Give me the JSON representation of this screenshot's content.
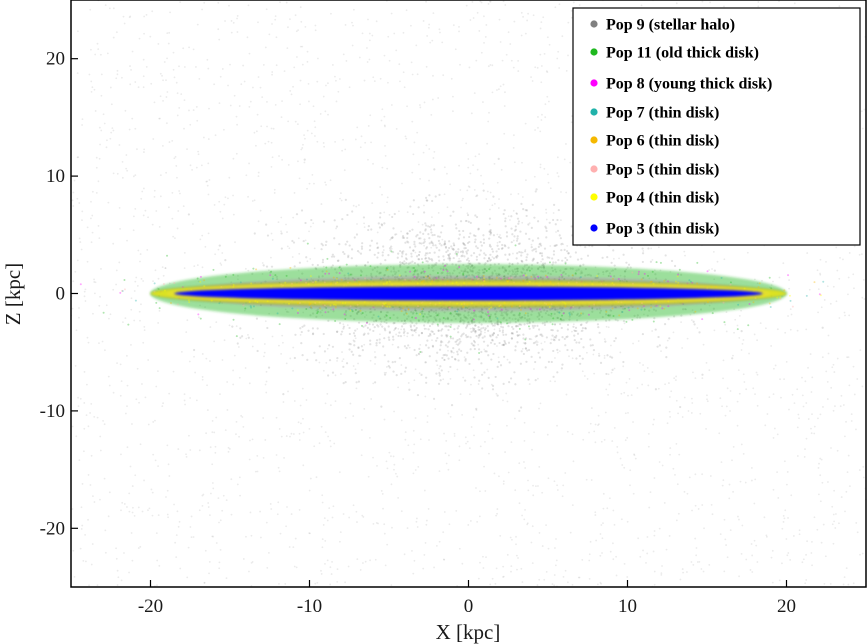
{
  "chart_data": {
    "type": "scatter",
    "xlabel": "X [kpc]",
    "ylabel": "Z [kpc]",
    "xlim": [
      -25,
      25
    ],
    "ylim": [
      -25,
      25
    ],
    "x_ticks": [
      -20,
      -10,
      0,
      10,
      20
    ],
    "y_ticks": [
      -20,
      -10,
      0,
      10,
      20
    ],
    "grid": false,
    "legend_position": "top-right",
    "series": [
      {
        "name": "Pop 9 (stellar halo)",
        "color": "#808080",
        "component": "halo",
        "x_extent": [
          -25,
          25
        ],
        "z_extent": [
          -25,
          25
        ]
      },
      {
        "name": "Pop 11 (old thick disk)",
        "color": "#1fb81f",
        "component": "thick-disk",
        "x_extent": [
          -20,
          20
        ],
        "z_extent": [
          -2.5,
          2.5
        ]
      },
      {
        "name": "Pop 8 (young thick disk)",
        "color": "#ff00ff",
        "component": "thick-disk",
        "x_extent": [
          -18,
          18
        ],
        "z_extent": [
          -1.5,
          1.5
        ]
      },
      {
        "name": "Pop 7 (thin disk)",
        "color": "#20b2aa",
        "component": "thin-disk",
        "x_extent": [
          -20,
          20
        ],
        "z_extent": [
          -1.2,
          1.2
        ]
      },
      {
        "name": "Pop 6 (thin disk)",
        "color": "#f5b800",
        "component": "thin-disk",
        "x_extent": [
          -20,
          20
        ],
        "z_extent": [
          -1.2,
          1.2
        ]
      },
      {
        "name": "Pop 5 (thin disk)",
        "color": "#ffb0b0",
        "component": "thin-disk",
        "x_extent": [
          -19,
          19
        ],
        "z_extent": [
          -0.9,
          0.9
        ]
      },
      {
        "name": "Pop 4 (thin disk)",
        "color": "#ffff00",
        "component": "thin-disk",
        "x_extent": [
          -20,
          20
        ],
        "z_extent": [
          -1.0,
          1.0
        ]
      },
      {
        "name": "Pop 3 (thin disk)",
        "color": "#0000ff",
        "component": "thin-disk",
        "x_extent": [
          -18.5,
          18.5
        ],
        "z_extent": [
          -0.6,
          0.6
        ]
      }
    ]
  }
}
